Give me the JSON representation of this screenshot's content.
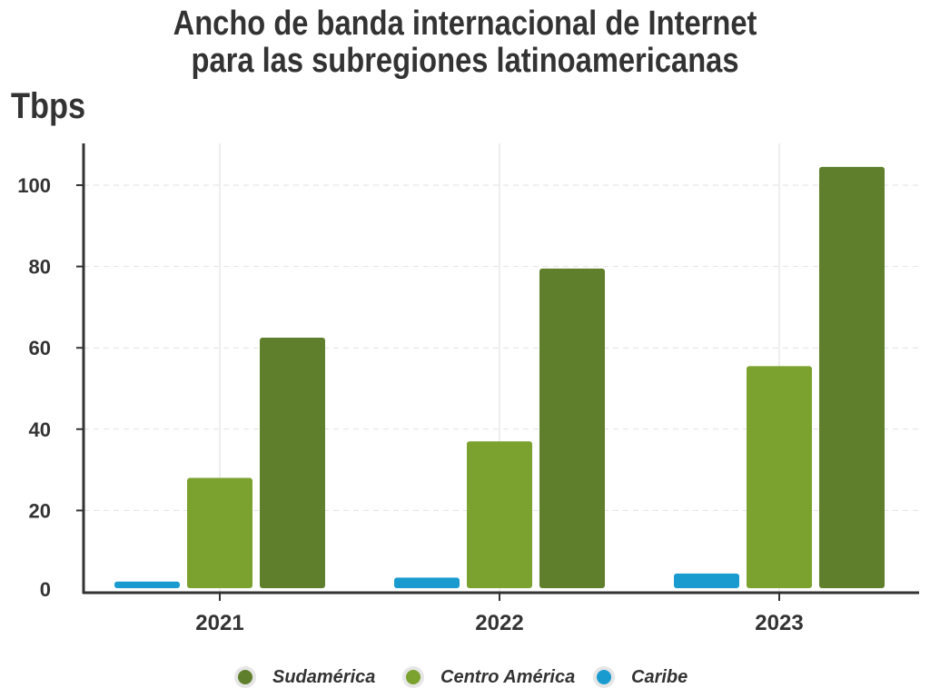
{
  "chart_data": {
    "type": "bar",
    "title_lines": [
      "Ancho de banda internacional de Internet",
      "para las subregiones latinoamericanas"
    ],
    "ylabel": "Tbps",
    "xlabel": "",
    "categories": [
      "2021",
      "2022",
      "2023"
    ],
    "ylim": [
      0,
      110
    ],
    "yticks": [
      0,
      20,
      40,
      60,
      80,
      100
    ],
    "grid": true,
    "legend_position": "bottom",
    "series": [
      {
        "name": "Caribe",
        "color": "#1a9bd0",
        "values": [
          2.5,
          3.5,
          4.5
        ]
      },
      {
        "name": "Centro América",
        "color": "#7ba12e",
        "values": [
          28,
          37,
          55.5
        ]
      },
      {
        "name": "Sudamérica",
        "color": "#5f7f2d",
        "values": [
          62.5,
          79.5,
          104.5
        ]
      }
    ],
    "legend_order": [
      "Sudamérica",
      "Centro América",
      "Caribe"
    ]
  }
}
